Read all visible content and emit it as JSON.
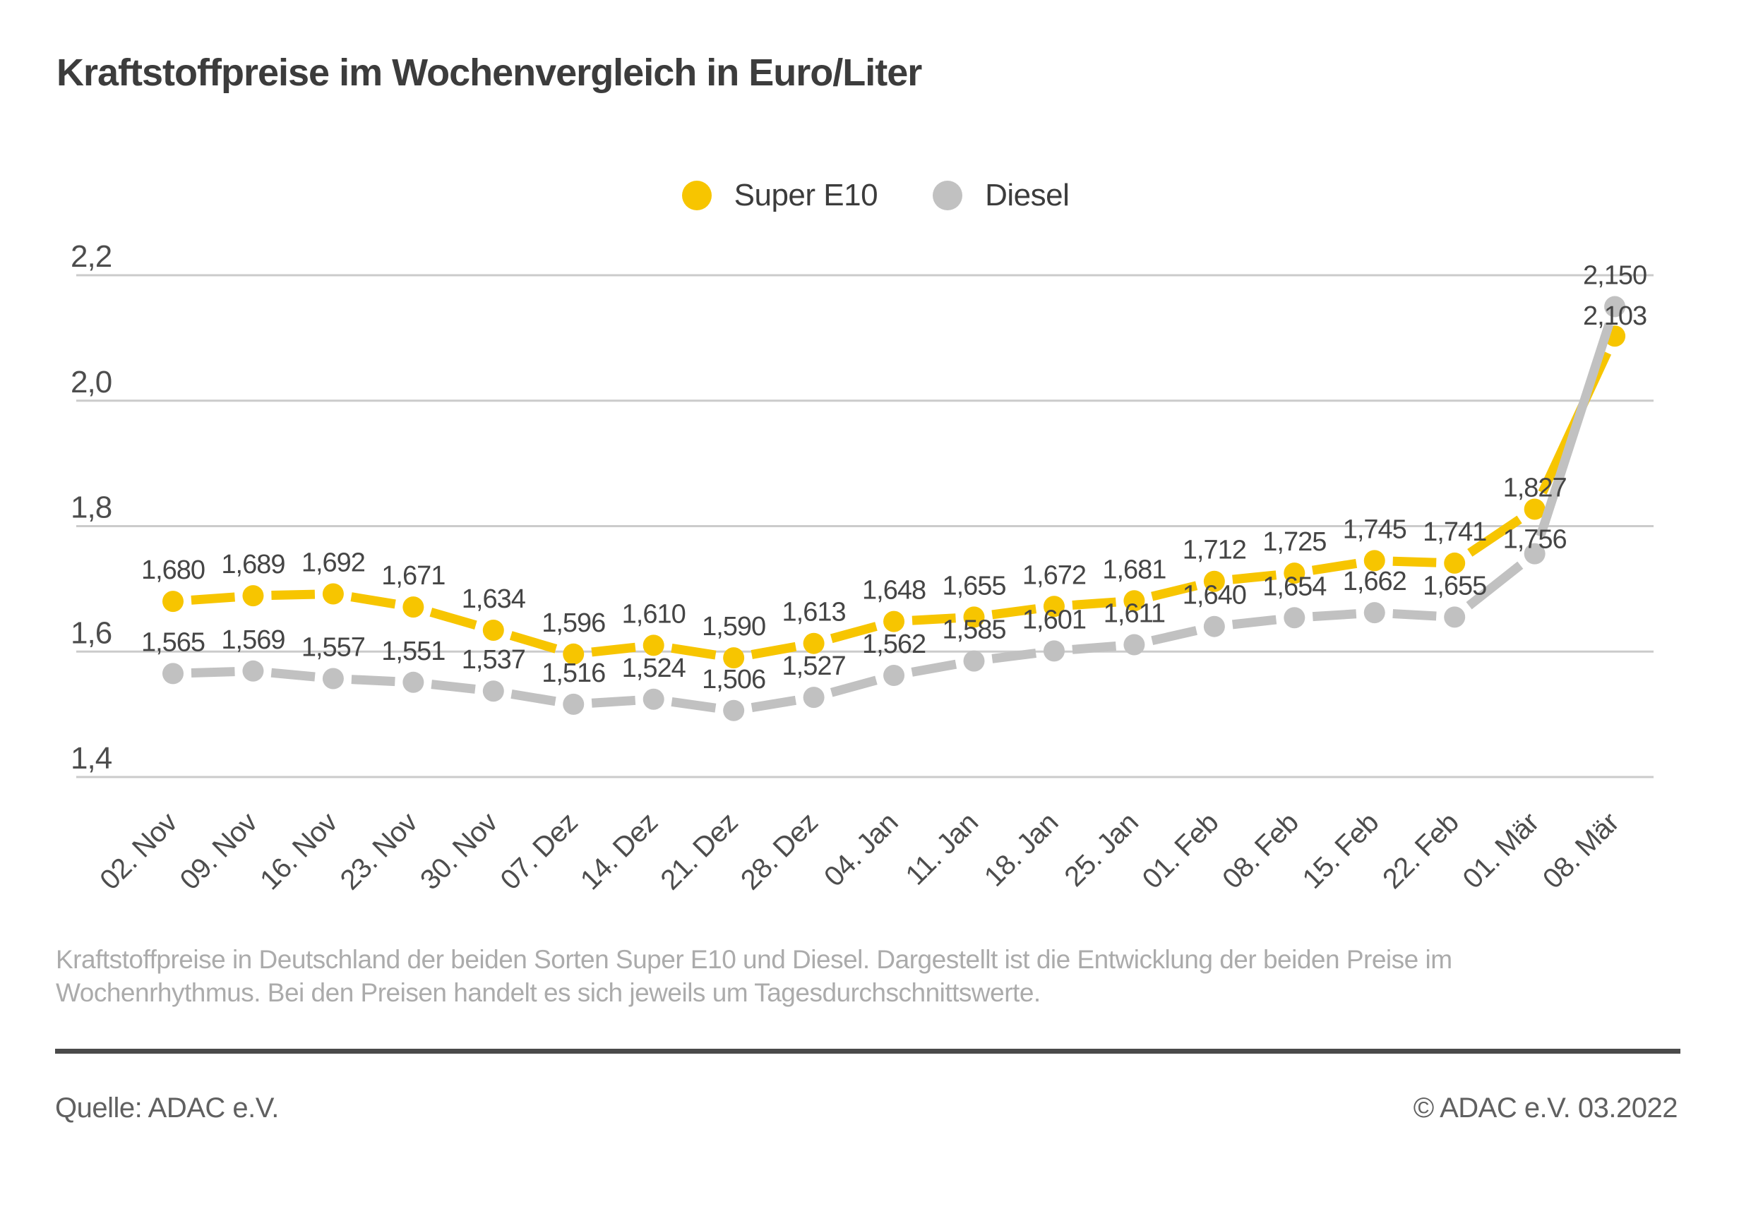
{
  "title": "Kraftstoffpreise im Wochenvergleich in Euro/Liter",
  "colors": {
    "super_e10": "#f7c500",
    "diesel": "#c1c1c1",
    "gridline": "#cbcbcb",
    "axis_text": "#4d4d4d",
    "data_label_text": "#454545",
    "caption_text": "#ababab",
    "footer_rule": "#4a4a4a"
  },
  "chart_data": {
    "type": "line",
    "unit": "Euro/Liter",
    "grid": true,
    "legend_position": "top-center",
    "value_labels_shown": true,
    "ylim": [
      1.4,
      2.2
    ],
    "yticks": [
      2.2,
      2.0,
      1.8,
      1.6,
      1.4
    ],
    "x": [
      "02. Nov",
      "09. Nov",
      "16. Nov",
      "23. Nov",
      "30. Nov",
      "07. Dez",
      "14. Dez",
      "21. Dez",
      "28. Dez",
      "04. Jan",
      "11. Jan",
      "18. Jan",
      "25. Jan",
      "01. Feb",
      "08. Feb",
      "15. Feb",
      "22. Feb",
      "01. Mär",
      "08. Mär"
    ],
    "series": [
      {
        "name": "Super E10",
        "color": "#f7c500",
        "values": [
          1.68,
          1.689,
          1.692,
          1.671,
          1.634,
          1.596,
          1.61,
          1.59,
          1.613,
          1.648,
          1.655,
          1.672,
          1.681,
          1.712,
          1.725,
          1.745,
          1.741,
          1.827,
          2.103
        ]
      },
      {
        "name": "Diesel",
        "color": "#c1c1c1",
        "values": [
          1.565,
          1.569,
          1.557,
          1.551,
          1.537,
          1.516,
          1.524,
          1.506,
          1.527,
          1.562,
          1.585,
          1.601,
          1.611,
          1.64,
          1.654,
          1.662,
          1.655,
          1.756,
          2.15
        ]
      }
    ]
  },
  "caption": {
    "line1": "Kraftstoffpreise in Deutschland der beiden Sorten Super E10 und Diesel. Dargestellt ist die Entwicklung der beiden Preise im",
    "line2": "Wochenrhythmus. Bei den Preisen handelt es sich jeweils um Tagesdurchschnittswerte."
  },
  "footer": {
    "source": "Quelle: ADAC e.V.",
    "copyright": "© ADAC e.V. 03.2022"
  }
}
